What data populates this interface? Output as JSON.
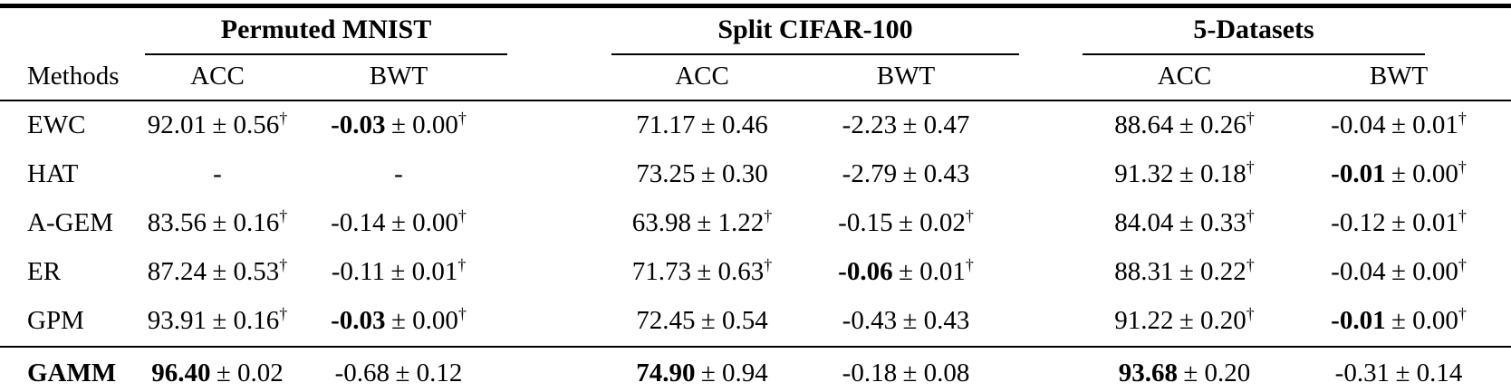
{
  "page": {
    "background_color": "#ffffff",
    "text_color": "#000000",
    "rule_color": "#000000"
  },
  "table": {
    "methods_header": "Methods",
    "groups": [
      {
        "label": "Permuted MNIST"
      },
      {
        "label": "Split CIFAR-100"
      },
      {
        "label": "5-Datasets"
      }
    ],
    "subheaders": [
      "ACC",
      "BWT"
    ],
    "dagger_symbol": "†",
    "rows": [
      {
        "method": "EWC",
        "method_bold": false,
        "separator_above": false,
        "cells": [
          {
            "value": "92.01",
            "pm": "± 0.56",
            "sup": "†",
            "bold": false
          },
          {
            "value": "-0.03",
            "pm": "± 0.00",
            "sup": "†",
            "bold": true
          },
          {
            "value": "71.17",
            "pm": "± 0.46",
            "sup": "",
            "bold": false
          },
          {
            "value": "-2.23",
            "pm": "± 0.47",
            "sup": "",
            "bold": false
          },
          {
            "value": "88.64",
            "pm": "± 0.26",
            "sup": "†",
            "bold": false
          },
          {
            "value": "-0.04",
            "pm": "± 0.01",
            "sup": "†",
            "bold": false
          }
        ]
      },
      {
        "method": "HAT",
        "method_bold": false,
        "separator_above": false,
        "cells": [
          {
            "value": "-",
            "pm": "",
            "sup": "",
            "bold": false
          },
          {
            "value": "-",
            "pm": "",
            "sup": "",
            "bold": false
          },
          {
            "value": "73.25",
            "pm": "± 0.30",
            "sup": "",
            "bold": false
          },
          {
            "value": "-2.79",
            "pm": "± 0.43",
            "sup": "",
            "bold": false
          },
          {
            "value": "91.32",
            "pm": "± 0.18",
            "sup": "†",
            "bold": false
          },
          {
            "value": "-0.01",
            "pm": "± 0.00",
            "sup": "†",
            "bold": true
          }
        ]
      },
      {
        "method": "A-GEM",
        "method_bold": false,
        "separator_above": false,
        "cells": [
          {
            "value": "83.56",
            "pm": "± 0.16",
            "sup": "†",
            "bold": false
          },
          {
            "value": "-0.14",
            "pm": "± 0.00",
            "sup": "†",
            "bold": false
          },
          {
            "value": "63.98",
            "pm": "± 1.22",
            "sup": "†",
            "bold": false
          },
          {
            "value": "-0.15",
            "pm": "± 0.02",
            "sup": "†",
            "bold": false
          },
          {
            "value": "84.04",
            "pm": "± 0.33",
            "sup": "†",
            "bold": false
          },
          {
            "value": "-0.12",
            "pm": "± 0.01",
            "sup": "†",
            "bold": false
          }
        ]
      },
      {
        "method": "ER",
        "method_bold": false,
        "separator_above": false,
        "cells": [
          {
            "value": "87.24",
            "pm": "± 0.53",
            "sup": "†",
            "bold": false
          },
          {
            "value": "-0.11",
            "pm": "± 0.01",
            "sup": "†",
            "bold": false
          },
          {
            "value": "71.73",
            "pm": "± 0.63",
            "sup": "†",
            "bold": false
          },
          {
            "value": "-0.06",
            "pm": "± 0.01",
            "sup": "†",
            "bold": true
          },
          {
            "value": "88.31",
            "pm": "± 0.22",
            "sup": "†",
            "bold": false
          },
          {
            "value": "-0.04",
            "pm": "± 0.00",
            "sup": "†",
            "bold": false
          }
        ]
      },
      {
        "method": "GPM",
        "method_bold": false,
        "separator_above": false,
        "cells": [
          {
            "value": "93.91",
            "pm": "± 0.16",
            "sup": "†",
            "bold": false
          },
          {
            "value": "-0.03",
            "pm": "± 0.00",
            "sup": "†",
            "bold": true
          },
          {
            "value": "72.45",
            "pm": "± 0.54",
            "sup": "",
            "bold": false
          },
          {
            "value": "-0.43",
            "pm": "± 0.43",
            "sup": "",
            "bold": false
          },
          {
            "value": "91.22",
            "pm": "± 0.20",
            "sup": "†",
            "bold": false
          },
          {
            "value": "-0.01",
            "pm": "± 0.00",
            "sup": "†",
            "bold": true
          }
        ]
      },
      {
        "method": "GAMM",
        "method_bold": true,
        "separator_above": true,
        "cells": [
          {
            "value": "96.40",
            "pm": "± 0.02",
            "sup": "",
            "bold": true
          },
          {
            "value": "-0.68",
            "pm": "± 0.12",
            "sup": "",
            "bold": false
          },
          {
            "value": "74.90",
            "pm": "± 0.94",
            "sup": "",
            "bold": true
          },
          {
            "value": "-0.18",
            "pm": "± 0.08",
            "sup": "",
            "bold": false
          },
          {
            "value": "93.68",
            "pm": "± 0.20",
            "sup": "",
            "bold": true
          },
          {
            "value": "-0.31",
            "pm": "± 0.14",
            "sup": "",
            "bold": false
          }
        ]
      }
    ]
  }
}
